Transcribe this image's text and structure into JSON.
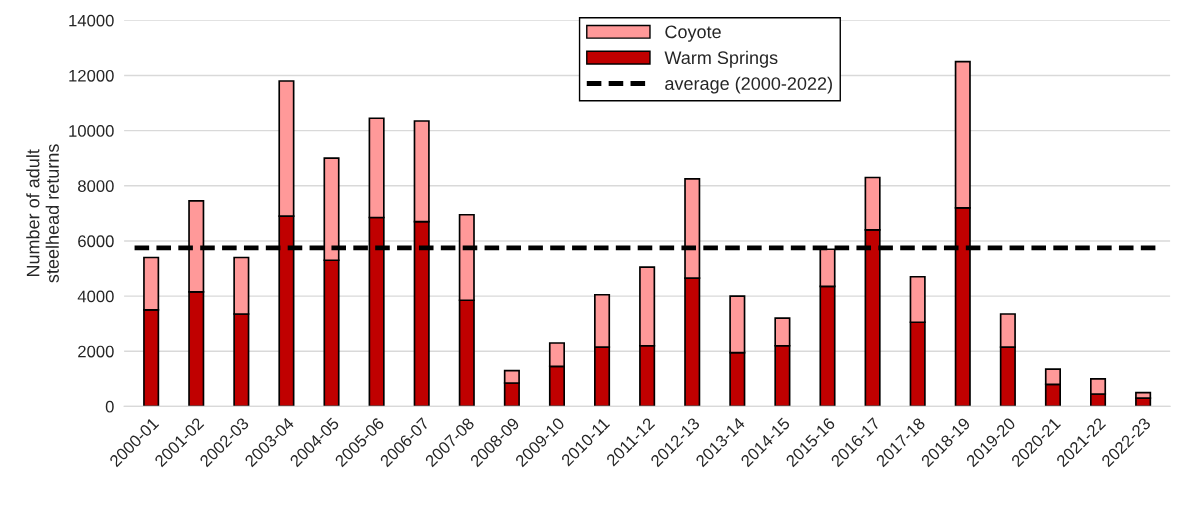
{
  "chart_data": {
    "type": "bar",
    "stacked": true,
    "ylabel": "Number of adult\nsteelhead returns",
    "categories": [
      "2000-01",
      "2001-02",
      "2002-03",
      "2003-04",
      "2004-05",
      "2005-06",
      "2006-07",
      "2007-08",
      "2008-09",
      "2009-10",
      "2010-11",
      "2011-12",
      "2012-13",
      "2013-14",
      "2014-15",
      "2015-16",
      "2016-17",
      "2017-18",
      "2018-19",
      "2019-20",
      "2020-21",
      "2021-22",
      "2022-23"
    ],
    "series": [
      {
        "name": "Warm Springs",
        "color": "#c00000",
        "values": [
          3500,
          4150,
          3350,
          6900,
          5300,
          6850,
          6700,
          3850,
          850,
          1450,
          2150,
          2200,
          4650,
          1950,
          2200,
          4350,
          6400,
          3050,
          7200,
          2150,
          800,
          450,
          300
        ]
      },
      {
        "name": "Coyote",
        "color": "#ff9999",
        "values": [
          1900,
          3300,
          2050,
          4900,
          3700,
          3600,
          3650,
          3100,
          450,
          850,
          1900,
          2850,
          3600,
          2050,
          1000,
          1350,
          1900,
          1650,
          5300,
          1200,
          550,
          550,
          200
        ]
      }
    ],
    "ref_lines": [
      {
        "axis": "y",
        "value": 5750,
        "label": "average (2000-2022)",
        "color": "#000000",
        "line_style": "dashed"
      }
    ],
    "ylim": [
      0,
      14000
    ],
    "yticks": [
      0,
      2000,
      4000,
      6000,
      8000,
      10000,
      12000,
      14000
    ],
    "grid": "y",
    "legend": "top"
  }
}
